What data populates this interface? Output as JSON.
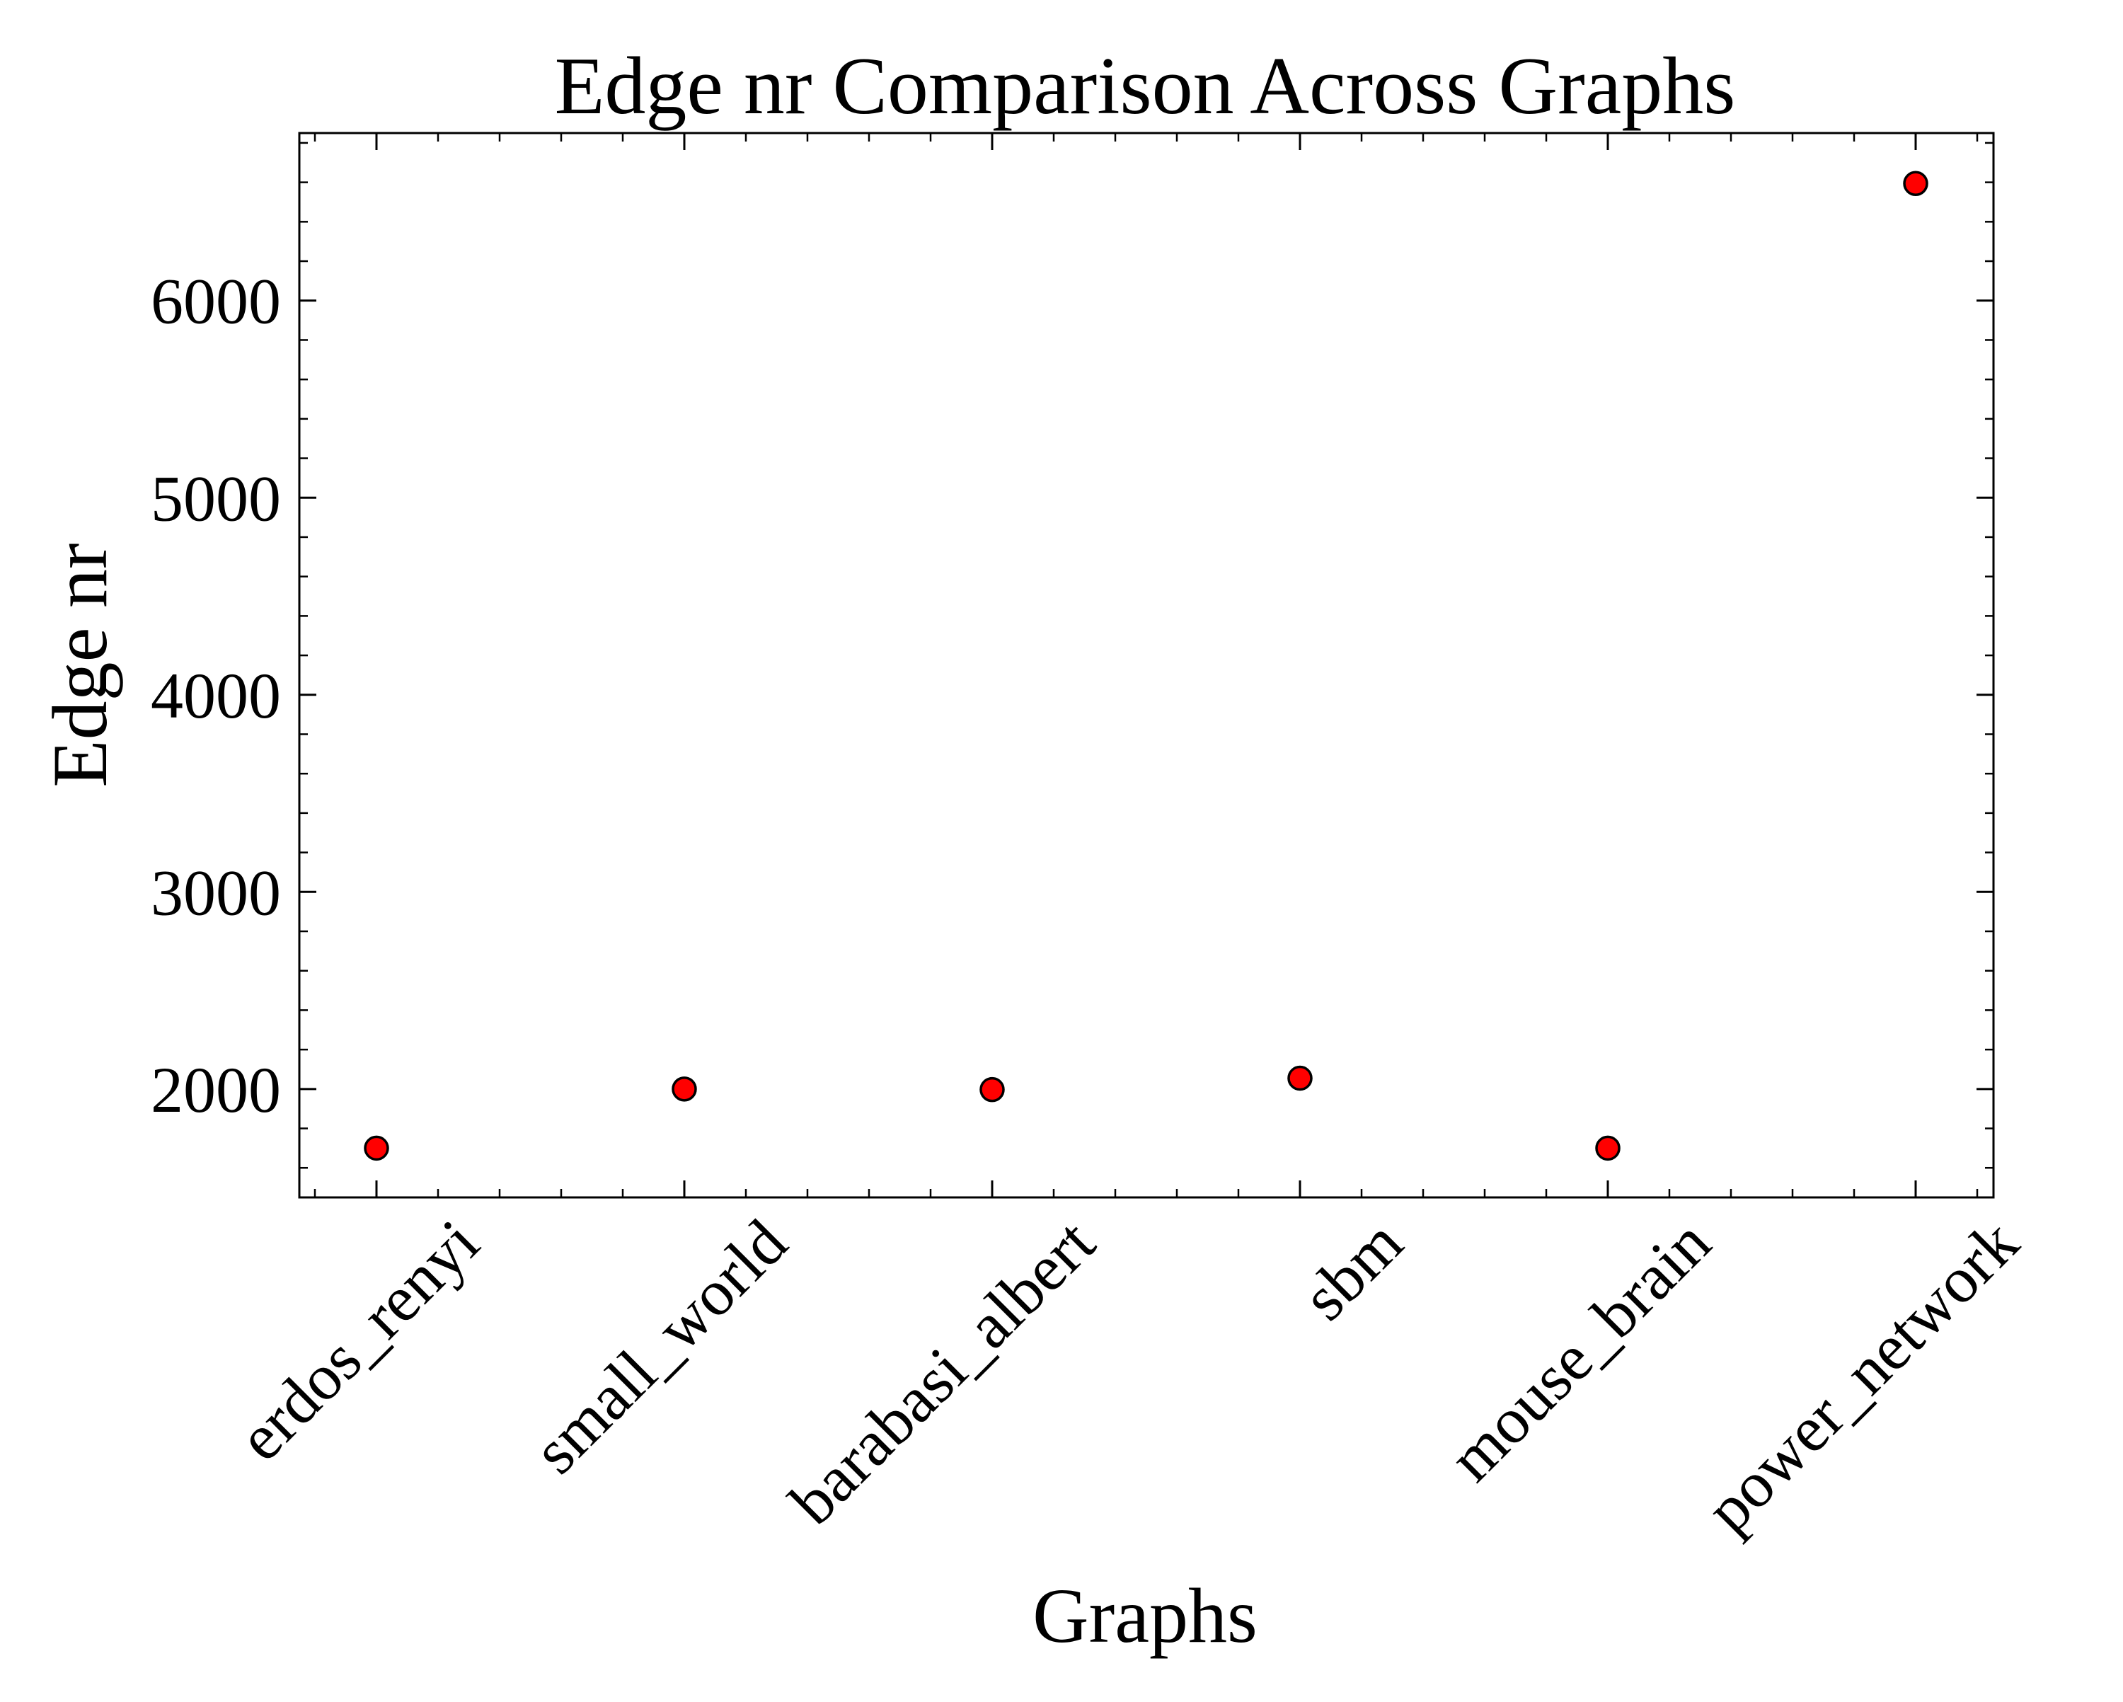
{
  "chart_data": {
    "type": "scatter",
    "title": "Edge nr Comparison Across Graphs",
    "xlabel": "Graphs",
    "ylabel": "Edge nr",
    "categories": [
      "erdos_renyi",
      "small_world",
      "barabasi_albert",
      "sbm",
      "mouse_brain",
      "power_network"
    ],
    "values": [
      1700,
      2000,
      1997,
      2055,
      1700,
      6594
    ],
    "ylim": [
      1450,
      6850
    ],
    "yticks": [
      2000,
      3000,
      4000,
      5000,
      6000
    ],
    "grid": false,
    "marker": {
      "fill": "#ff0000",
      "edge": "#000000"
    }
  }
}
